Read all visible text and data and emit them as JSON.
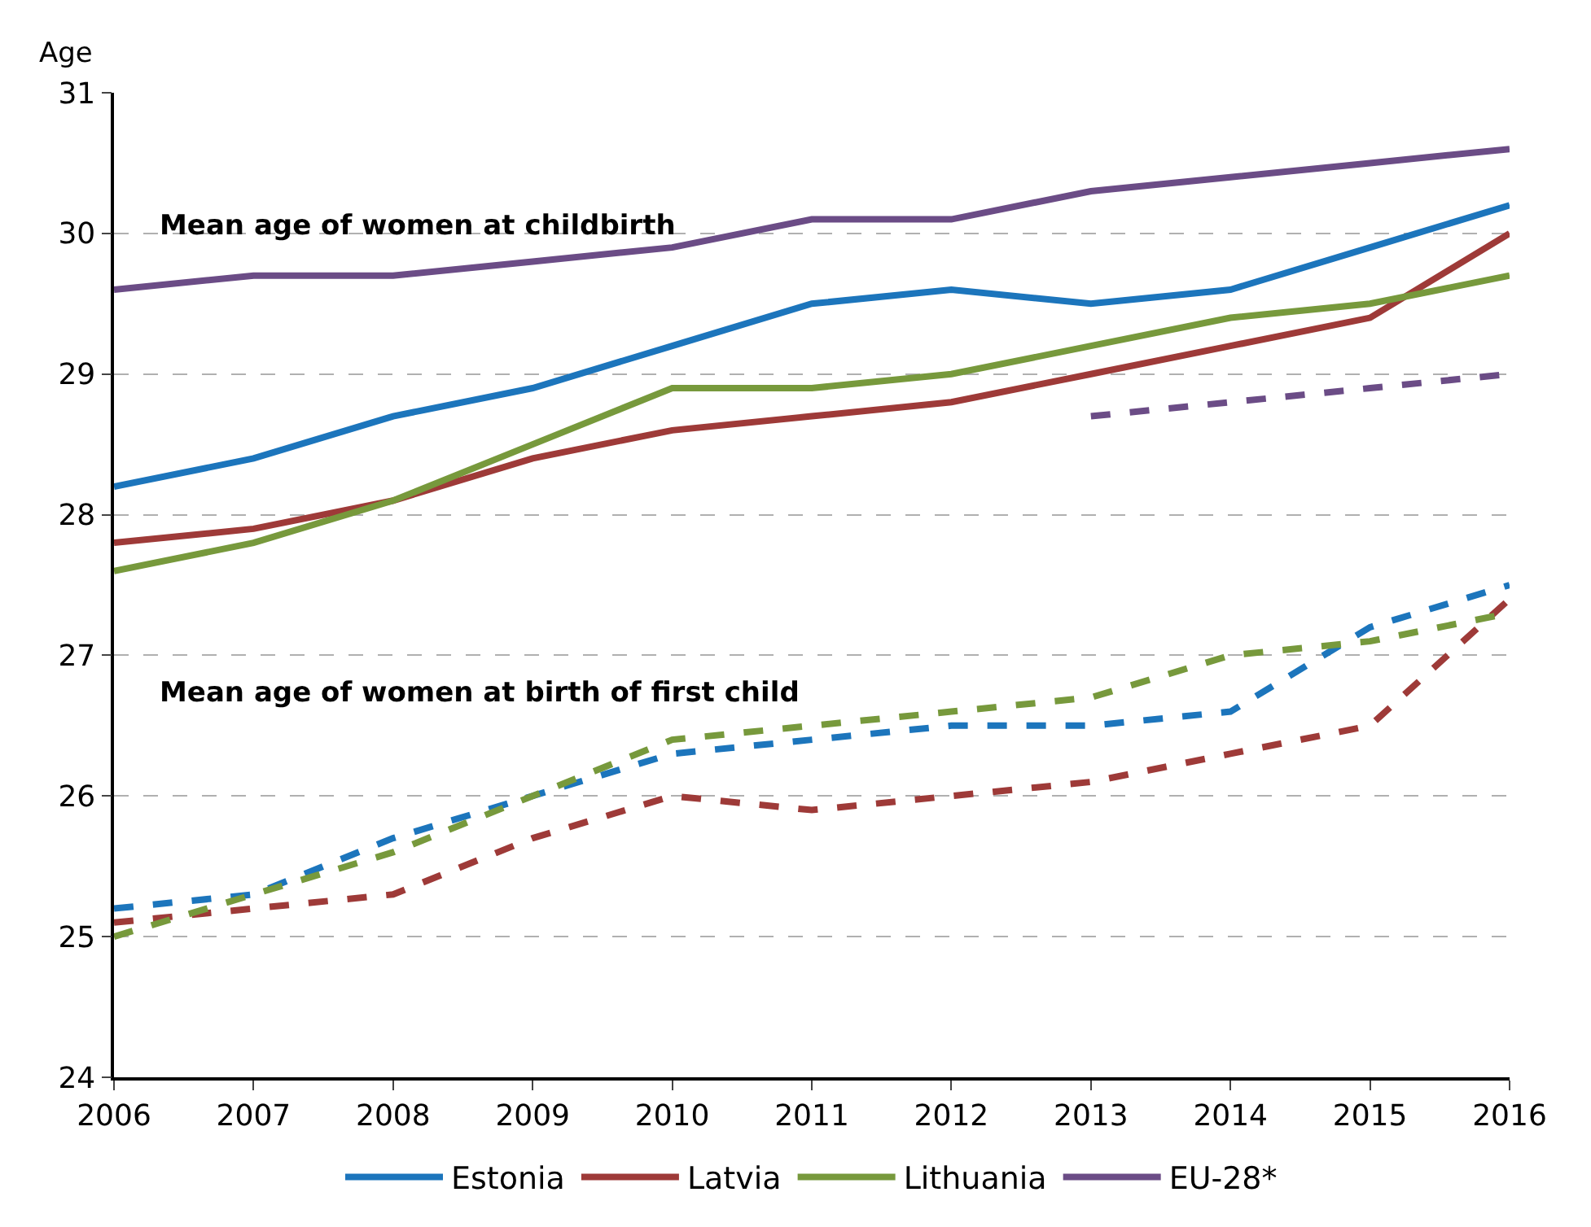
{
  "chart_data": {
    "type": "line",
    "ylabel": "Age",
    "x": [
      2006,
      2007,
      2008,
      2009,
      2010,
      2011,
      2012,
      2013,
      2014,
      2015,
      2016
    ],
    "xlim": [
      2006,
      2016
    ],
    "xticks": [
      2006,
      2007,
      2008,
      2009,
      2010,
      2011,
      2012,
      2013,
      2014,
      2015,
      2016
    ],
    "ylim": [
      24,
      31
    ],
    "yticks": [
      24,
      25,
      26,
      27,
      28,
      29,
      30,
      31
    ],
    "grid": "y",
    "legend": "bottom",
    "marker": "none",
    "annotations": [
      "Mean age of women at childbirth",
      "Mean age of women at birth of first child"
    ],
    "series": [
      {
        "name": "Estonia",
        "color": "#1c75bc",
        "line_style": "solid",
        "values": [
          28.2,
          28.4,
          28.7,
          28.9,
          29.2,
          29.5,
          29.6,
          29.5,
          29.6,
          29.9,
          30.2
        ]
      },
      {
        "name": "Latvia",
        "color": "#9e3a38",
        "line_style": "solid",
        "values": [
          27.8,
          27.9,
          28.1,
          28.4,
          28.6,
          28.7,
          28.8,
          29.0,
          29.2,
          29.4,
          30.0
        ]
      },
      {
        "name": "Lithuania",
        "color": "#77993c",
        "line_style": "solid",
        "values": [
          27.6,
          27.8,
          28.1,
          28.5,
          28.9,
          28.9,
          29.0,
          29.2,
          29.4,
          29.5,
          29.7
        ]
      },
      {
        "name": "EU-28*",
        "color": "#6b4c86",
        "line_style": "solid",
        "values": [
          29.6,
          29.7,
          29.7,
          29.8,
          29.9,
          30.1,
          30.1,
          30.3,
          30.4,
          30.5,
          30.6
        ]
      },
      {
        "color": "#1c75bc",
        "line_style": "dashed",
        "values": [
          25.2,
          25.3,
          25.7,
          26.0,
          26.3,
          26.4,
          26.5,
          26.5,
          26.6,
          27.2,
          27.5
        ]
      },
      {
        "color": "#9e3a38",
        "line_style": "dashed",
        "values": [
          25.1,
          25.2,
          25.3,
          25.7,
          26.0,
          25.9,
          26.0,
          26.1,
          26.3,
          26.5,
          27.4
        ]
      },
      {
        "color": "#77993c",
        "line_style": "dashed",
        "values": [
          25.0,
          25.3,
          25.6,
          26.0,
          26.4,
          26.5,
          26.6,
          26.7,
          27.0,
          27.1,
          27.3
        ]
      },
      {
        "color": "#6b4c86",
        "line_style": "dashed",
        "x": [
          2013,
          2014,
          2015,
          2016
        ],
        "values": [
          28.7,
          28.8,
          28.9,
          29.0
        ]
      }
    ]
  }
}
